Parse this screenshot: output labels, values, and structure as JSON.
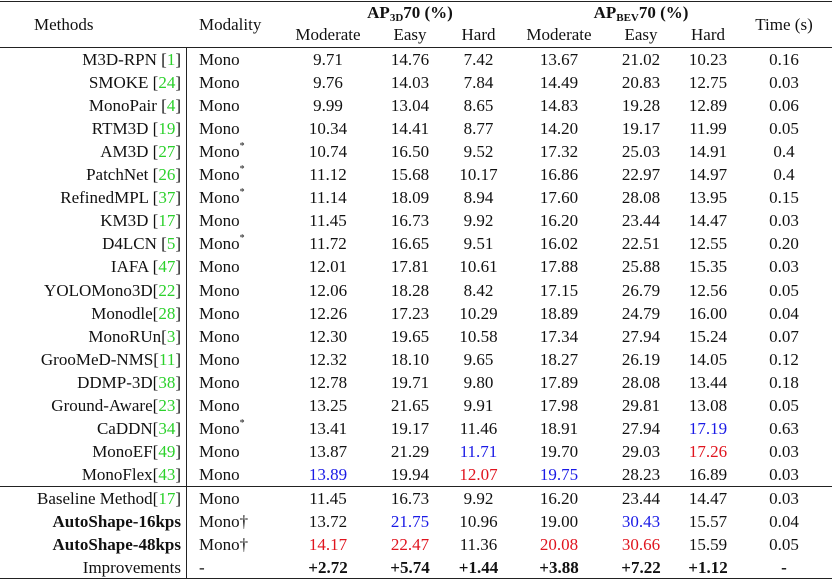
{
  "header": {
    "methods": "Methods",
    "modality": "Modality",
    "group_3d": {
      "prefix": "AP",
      "sub": "3D",
      "suffix": "70 (%)"
    },
    "group_bev": {
      "prefix": "AP",
      "sub": "BEV",
      "suffix": "70 (%)"
    },
    "time": "Time (s)",
    "subcols": [
      "Moderate",
      "Easy",
      "Hard",
      "Moderate",
      "Easy",
      "Hard"
    ]
  },
  "colors": {
    "best": "#e0141e",
    "second": "#1a1ae6",
    "citation": "#2bd12b"
  },
  "rows": [
    {
      "name": "M3D-RPN ",
      "ref": "1",
      "mod": "Mono",
      "sup": "",
      "cells": [
        [
          "9.71",
          ""
        ],
        [
          "14.76",
          ""
        ],
        [
          "7.42",
          ""
        ],
        [
          "13.67",
          ""
        ],
        [
          "21.02",
          ""
        ],
        [
          "10.23",
          ""
        ],
        [
          "0.16",
          ""
        ]
      ]
    },
    {
      "name": "SMOKE ",
      "ref": "24",
      "mod": "Mono",
      "sup": "",
      "cells": [
        [
          "9.76",
          ""
        ],
        [
          "14.03",
          ""
        ],
        [
          "7.84",
          ""
        ],
        [
          "14.49",
          ""
        ],
        [
          "20.83",
          ""
        ],
        [
          "12.75",
          ""
        ],
        [
          "0.03",
          ""
        ]
      ]
    },
    {
      "name": "MonoPair ",
      "ref": "4",
      "mod": "Mono",
      "sup": "",
      "cells": [
        [
          "9.99",
          ""
        ],
        [
          "13.04",
          ""
        ],
        [
          "8.65",
          ""
        ],
        [
          "14.83",
          ""
        ],
        [
          "19.28",
          ""
        ],
        [
          "12.89",
          ""
        ],
        [
          "0.06",
          ""
        ]
      ]
    },
    {
      "name": "RTM3D ",
      "ref": "19",
      "mod": "Mono",
      "sup": "",
      "cells": [
        [
          "10.34",
          ""
        ],
        [
          "14.41",
          ""
        ],
        [
          "8.77",
          ""
        ],
        [
          "14.20",
          ""
        ],
        [
          "19.17",
          ""
        ],
        [
          "11.99",
          ""
        ],
        [
          "0.05",
          ""
        ]
      ]
    },
    {
      "name": "AM3D ",
      "ref": "27",
      "mod": "Mono",
      "sup": "*",
      "cells": [
        [
          "10.74",
          ""
        ],
        [
          "16.50",
          ""
        ],
        [
          "9.52",
          ""
        ],
        [
          "17.32",
          ""
        ],
        [
          "25.03",
          ""
        ],
        [
          "14.91",
          ""
        ],
        [
          "0.4",
          ""
        ]
      ]
    },
    {
      "name": "PatchNet ",
      "ref": "26",
      "mod": "Mono",
      "sup": "*",
      "cells": [
        [
          "11.12",
          ""
        ],
        [
          "15.68",
          ""
        ],
        [
          "10.17",
          ""
        ],
        [
          "16.86",
          ""
        ],
        [
          "22.97",
          ""
        ],
        [
          "14.97",
          ""
        ],
        [
          "0.4",
          ""
        ]
      ]
    },
    {
      "name": "RefinedMPL ",
      "ref": "37",
      "mod": "Mono",
      "sup": "*",
      "cells": [
        [
          "11.14",
          ""
        ],
        [
          "18.09",
          ""
        ],
        [
          "8.94",
          ""
        ],
        [
          "17.60",
          ""
        ],
        [
          "28.08",
          ""
        ],
        [
          "13.95",
          ""
        ],
        [
          "0.15",
          ""
        ]
      ]
    },
    {
      "name": "KM3D ",
      "ref": "17",
      "mod": "Mono",
      "sup": "",
      "cells": [
        [
          "11.45",
          ""
        ],
        [
          "16.73",
          ""
        ],
        [
          "9.92",
          ""
        ],
        [
          "16.20",
          ""
        ],
        [
          "23.44",
          ""
        ],
        [
          "14.47",
          ""
        ],
        [
          "0.03",
          ""
        ]
      ]
    },
    {
      "name": "D4LCN ",
      "ref": "5",
      "mod": "Mono",
      "sup": "*",
      "cells": [
        [
          "11.72",
          ""
        ],
        [
          "16.65",
          ""
        ],
        [
          "9.51",
          ""
        ],
        [
          "16.02",
          ""
        ],
        [
          "22.51",
          ""
        ],
        [
          "12.55",
          ""
        ],
        [
          "0.20",
          ""
        ]
      ]
    },
    {
      "name": "IAFA ",
      "ref": "47",
      "mod": "Mono",
      "sup": "",
      "cells": [
        [
          "12.01",
          ""
        ],
        [
          "17.81",
          ""
        ],
        [
          "10.61",
          ""
        ],
        [
          "17.88",
          ""
        ],
        [
          "25.88",
          ""
        ],
        [
          "15.35",
          ""
        ],
        [
          "0.03",
          ""
        ]
      ]
    },
    {
      "name": "YOLOMono3D",
      "ref": "22",
      "mod": "Mono",
      "sup": "",
      "cells": [
        [
          "12.06",
          ""
        ],
        [
          "18.28",
          ""
        ],
        [
          "8.42",
          ""
        ],
        [
          "17.15",
          ""
        ],
        [
          "26.79",
          ""
        ],
        [
          "12.56",
          ""
        ],
        [
          "0.05",
          ""
        ]
      ]
    },
    {
      "name": "Monodle",
      "ref": "28",
      "mod": "Mono",
      "sup": "",
      "cells": [
        [
          "12.26",
          ""
        ],
        [
          "17.23",
          ""
        ],
        [
          "10.29",
          ""
        ],
        [
          "18.89",
          ""
        ],
        [
          "24.79",
          ""
        ],
        [
          "16.00",
          ""
        ],
        [
          "0.04",
          ""
        ]
      ]
    },
    {
      "name": "MonoRUn",
      "ref": "3",
      "mod": "Mono",
      "sup": "",
      "cells": [
        [
          "12.30",
          ""
        ],
        [
          "19.65",
          ""
        ],
        [
          "10.58",
          ""
        ],
        [
          "17.34",
          ""
        ],
        [
          "27.94",
          ""
        ],
        [
          "15.24",
          ""
        ],
        [
          "0.07",
          ""
        ]
      ]
    },
    {
      "name": "GrooMeD-NMS",
      "ref": "11",
      "mod": "Mono",
      "sup": "",
      "cells": [
        [
          "12.32",
          ""
        ],
        [
          "18.10",
          ""
        ],
        [
          "9.65",
          ""
        ],
        [
          "18.27",
          ""
        ],
        [
          "26.19",
          ""
        ],
        [
          "14.05",
          ""
        ],
        [
          "0.12",
          ""
        ]
      ]
    },
    {
      "name": "DDMP-3D",
      "ref": "38",
      "mod": "Mono",
      "sup": "",
      "cells": [
        [
          "12.78",
          ""
        ],
        [
          "19.71",
          ""
        ],
        [
          "9.80",
          ""
        ],
        [
          "17.89",
          ""
        ],
        [
          "28.08",
          ""
        ],
        [
          "13.44",
          ""
        ],
        [
          "0.18",
          ""
        ]
      ]
    },
    {
      "name": "Ground-Aware",
      "ref": "23",
      "mod": "Mono",
      "sup": "",
      "cells": [
        [
          "13.25",
          ""
        ],
        [
          "21.65",
          ""
        ],
        [
          "9.91",
          ""
        ],
        [
          "17.98",
          ""
        ],
        [
          "29.81",
          ""
        ],
        [
          "13.08",
          ""
        ],
        [
          "0.05",
          ""
        ]
      ]
    },
    {
      "name": "CaDDN",
      "ref": "34",
      "mod": "Mono",
      "sup": "*",
      "cells": [
        [
          "13.41",
          ""
        ],
        [
          "19.17",
          ""
        ],
        [
          "11.46",
          ""
        ],
        [
          "18.91",
          ""
        ],
        [
          "27.94",
          ""
        ],
        [
          "17.19",
          "blue"
        ],
        [
          "0.63",
          ""
        ]
      ]
    },
    {
      "name": "MonoEF",
      "ref": "49",
      "mod": "Mono",
      "sup": "",
      "cells": [
        [
          "13.87",
          ""
        ],
        [
          "21.29",
          ""
        ],
        [
          "11.71",
          "blue"
        ],
        [
          "19.70",
          ""
        ],
        [
          "29.03",
          ""
        ],
        [
          "17.26",
          "red"
        ],
        [
          "0.03",
          ""
        ]
      ]
    },
    {
      "name": "MonoFlex",
      "ref": "43",
      "mod": "Mono",
      "sup": "",
      "cells": [
        [
          "13.89",
          "blue"
        ],
        [
          "19.94",
          ""
        ],
        [
          "12.07",
          "red"
        ],
        [
          "19.75",
          "blue"
        ],
        [
          "28.23",
          ""
        ],
        [
          "16.89",
          ""
        ],
        [
          "0.03",
          ""
        ]
      ]
    },
    {
      "name": "Baseline Method",
      "ref": "17",
      "mod": "Mono",
      "sup": "",
      "cells": [
        [
          "11.45",
          ""
        ],
        [
          "16.73",
          ""
        ],
        [
          "9.92",
          ""
        ],
        [
          "16.20",
          ""
        ],
        [
          "23.44",
          ""
        ],
        [
          "14.47",
          ""
        ],
        [
          "0.03",
          ""
        ]
      ]
    },
    {
      "name": "AutoShape-16kps",
      "ref": "",
      "bold_name": true,
      "mod": "Mono†",
      "sup": "",
      "cells": [
        [
          "13.72",
          ""
        ],
        [
          "21.75",
          "blue"
        ],
        [
          "10.96",
          ""
        ],
        [
          "19.00",
          ""
        ],
        [
          "30.43",
          "blue"
        ],
        [
          "15.57",
          ""
        ],
        [
          "0.04",
          ""
        ]
      ]
    },
    {
      "name": "AutoShape-48kps",
      "ref": "",
      "bold_name": true,
      "mod": "Mono†",
      "sup": "",
      "cells": [
        [
          "14.17",
          "red"
        ],
        [
          "22.47",
          "red"
        ],
        [
          "11.36",
          ""
        ],
        [
          "20.08",
          "red"
        ],
        [
          "30.66",
          "red"
        ],
        [
          "15.59",
          ""
        ],
        [
          "0.05",
          ""
        ]
      ]
    },
    {
      "name": "Improvements",
      "ref": "",
      "mod": "-",
      "sup": "",
      "bold_cells": true,
      "cells": [
        [
          "+2.72",
          ""
        ],
        [
          "+5.74",
          ""
        ],
        [
          "+1.44",
          ""
        ],
        [
          "+3.88",
          ""
        ],
        [
          "+7.22",
          ""
        ],
        [
          "+1.12",
          ""
        ],
        [
          "-",
          ""
        ]
      ]
    }
  ]
}
